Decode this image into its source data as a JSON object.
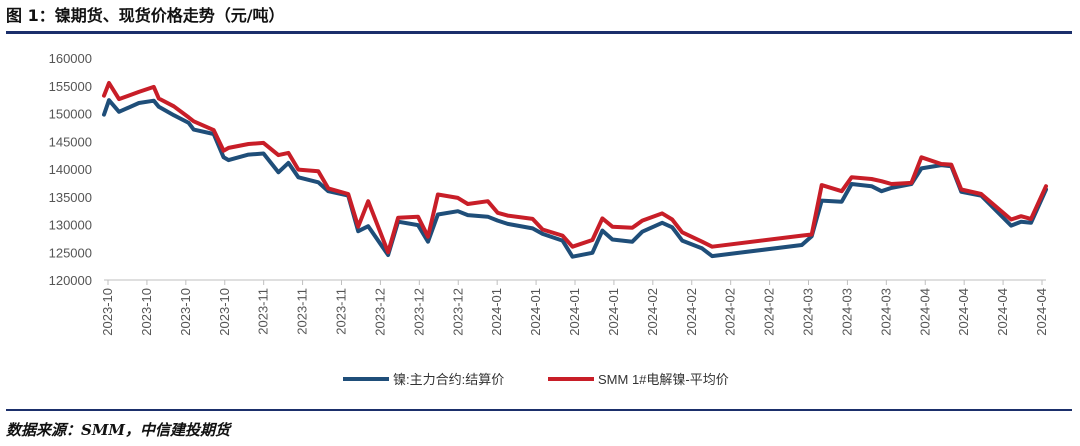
{
  "figure": {
    "title": "图 1：镍期货、现货价格走势（元/吨）",
    "source": "数据来源：SMM，中信建投期货"
  },
  "colors": {
    "series_futures": "#1f4e79",
    "series_spot": "#c81e28",
    "rule": "#1b2f6b"
  },
  "chart_data": {
    "type": "line",
    "ylim": [
      120000,
      160000
    ],
    "yticks": [
      120000,
      125000,
      130000,
      135000,
      140000,
      145000,
      150000,
      155000,
      160000
    ],
    "ytick_labels": [
      "120000",
      "125000",
      "130000",
      "135000",
      "140000",
      "145000",
      "150000",
      "155000",
      "160000"
    ],
    "xtick_labels": [
      "2023-10",
      "2023-10",
      "2023-10",
      "2023-10",
      "2023-11",
      "2023-11",
      "2023-11",
      "2023-12",
      "2023-12",
      "2023-12",
      "2024-01",
      "2024-01",
      "2024-01",
      "2024-01",
      "2024-02",
      "2024-02",
      "2024-02",
      "2024-02",
      "2024-03",
      "2024-03",
      "2024-03",
      "2024-04",
      "2024-04",
      "2024-04",
      "2024-04"
    ],
    "x": [
      "2023-10-09",
      "2023-10-10",
      "2023-10-12",
      "2023-10-16",
      "2023-10-19",
      "2023-10-20",
      "2023-10-23",
      "2023-10-26",
      "2023-10-27",
      "2023-10-31",
      "2023-11-02",
      "2023-11-03",
      "2023-11-07",
      "2023-11-10",
      "2023-11-13",
      "2023-11-15",
      "2023-11-17",
      "2023-11-21",
      "2023-11-23",
      "2023-11-27",
      "2023-11-29",
      "2023-12-01",
      "2023-12-05",
      "2023-12-07",
      "2023-12-11",
      "2023-12-13",
      "2023-12-15",
      "2023-12-19",
      "2023-12-21",
      "2023-12-25",
      "2023-12-27",
      "2023-12-29",
      "2024-01-03",
      "2024-01-05",
      "2024-01-09",
      "2024-01-11",
      "2024-01-15",
      "2024-01-17",
      "2024-01-19",
      "2024-01-23",
      "2024-01-25",
      "2024-01-29",
      "2024-01-31",
      "2024-02-02",
      "2024-02-06",
      "2024-02-08",
      "2024-02-26",
      "2024-02-28",
      "2024-03-01",
      "2024-03-05",
      "2024-03-07",
      "2024-03-11",
      "2024-03-13",
      "2024-03-15",
      "2024-03-19",
      "2024-03-21",
      "2024-03-25",
      "2024-03-27",
      "2024-03-29",
      "2024-04-02",
      "2024-04-08",
      "2024-04-10",
      "2024-04-12",
      "2024-04-15"
    ],
    "series": [
      {
        "name": "镍:主力合约:结算价",
        "values": [
          149800,
          152400,
          150300,
          151900,
          152300,
          151200,
          149700,
          148300,
          147100,
          146300,
          142100,
          141600,
          142600,
          142800,
          139400,
          141100,
          138500,
          137600,
          136000,
          135200,
          128800,
          129700,
          124500,
          130500,
          129900,
          126900,
          131800,
          132400,
          131700,
          131400,
          130700,
          130100,
          129300,
          128300,
          127100,
          124200,
          124900,
          128900,
          127300,
          126900,
          128700,
          130300,
          129500,
          127100,
          125700,
          124300,
          126300,
          127900,
          134300,
          134100,
          137300,
          136900,
          136000,
          136600,
          137300,
          140100,
          140700,
          140500,
          135900,
          135200,
          129800,
          130500,
          130300,
          136300
        ]
      },
      {
        "name": "SMM 1#电解镍-平均价",
        "values": [
          153200,
          155500,
          152600,
          153900,
          154800,
          152700,
          151300,
          149300,
          148600,
          147000,
          143300,
          143800,
          144500,
          144700,
          142500,
          142900,
          139900,
          139600,
          136500,
          135500,
          129600,
          134200,
          125000,
          131200,
          131400,
          127800,
          135400,
          134800,
          133700,
          134200,
          132100,
          131600,
          131000,
          129100,
          128000,
          126000,
          127200,
          131100,
          129600,
          129400,
          130700,
          132000,
          130900,
          128600,
          126900,
          126000,
          128000,
          128200,
          137100,
          136000,
          138500,
          138200,
          137800,
          137300,
          137500,
          142100,
          140900,
          140800,
          136300,
          135500,
          130900,
          131500,
          131000,
          136900
        ]
      }
    ],
    "legend": "bottom-center",
    "grid": false
  }
}
